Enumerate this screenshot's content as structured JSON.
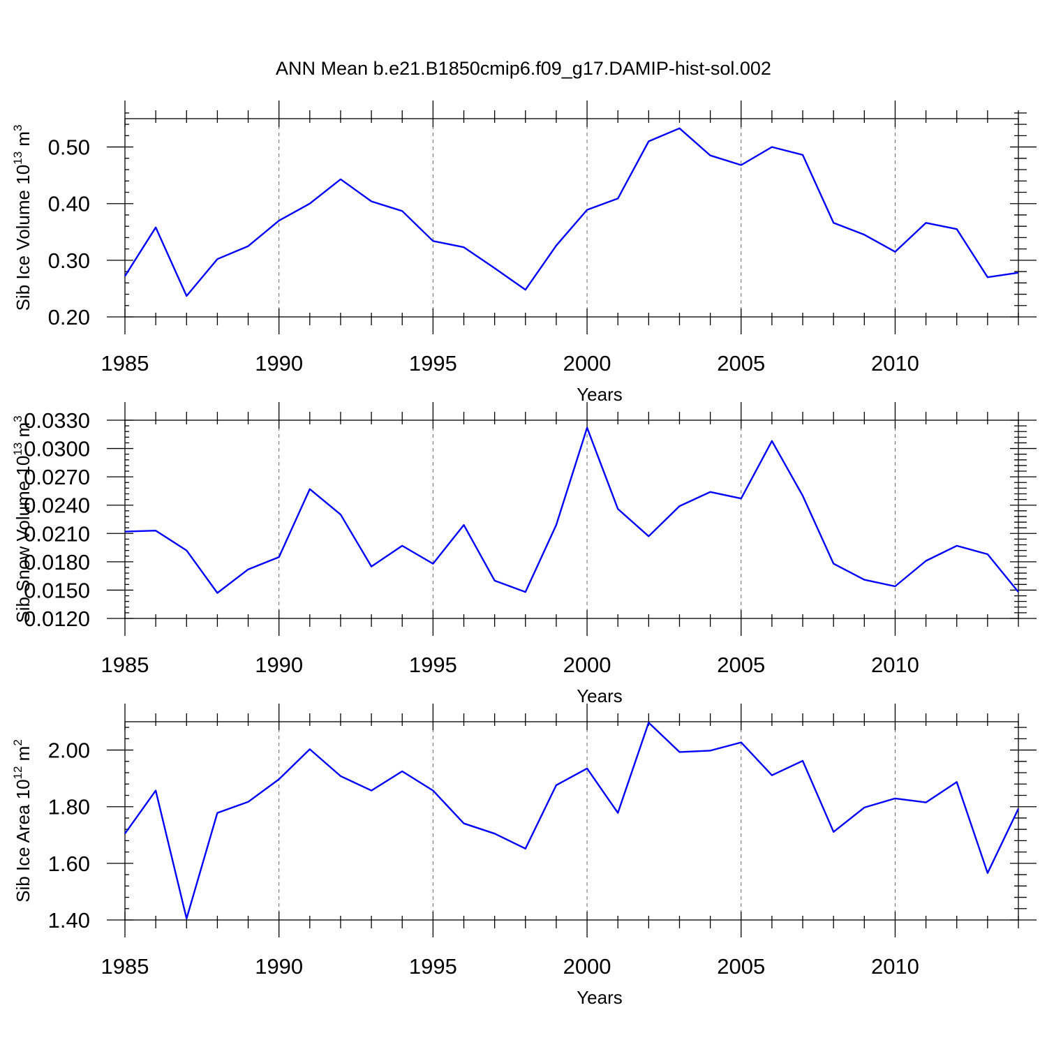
{
  "chart_data": [
    {
      "type": "line",
      "title": "ANN Mean b.e21.B1850cmip6.f09_g17.DAMIP-hist-sol.002",
      "xlabel": "Years",
      "ylabel": "Sib Ice Volume 10",
      "ylabel_exp": "13",
      "ylabel_unit": " m",
      "ylabel_unit_exp": "3",
      "xlim": [
        1985,
        2014
      ],
      "ylim": [
        0.2,
        0.55
      ],
      "xticks": [
        1985,
        1990,
        1995,
        2000,
        2005,
        2010
      ],
      "xtick_labels": [
        "1985",
        "1990",
        "1995",
        "2000",
        "2005",
        "2010"
      ],
      "yticks": [
        0.2,
        0.3,
        0.4,
        0.5
      ],
      "ytick_labels": [
        "0.20",
        "0.30",
        "0.40",
        "0.50"
      ],
      "color": "#0000ff",
      "series": [
        {
          "name": "Sib Ice Volume",
          "x": [
            1985,
            1986,
            1987,
            1988,
            1989,
            1990,
            1991,
            1992,
            1993,
            1994,
            1995,
            1996,
            1997,
            1998,
            1999,
            2000,
            2001,
            2002,
            2003,
            2004,
            2005,
            2006,
            2007,
            2008,
            2009,
            2010,
            2011,
            2012,
            2013,
            2014
          ],
          "values": [
            0.272,
            0.358,
            0.237,
            0.302,
            0.325,
            0.37,
            0.4,
            0.443,
            0.404,
            0.387,
            0.334,
            0.323,
            0.286,
            0.248,
            0.326,
            0.389,
            0.409,
            0.51,
            0.533,
            0.485,
            0.468,
            0.5,
            0.486,
            0.366,
            0.345,
            0.315,
            0.366,
            0.355,
            0.27,
            0.278
          ]
        }
      ]
    },
    {
      "type": "line",
      "title": "",
      "xlabel": "Years",
      "ylabel": "Sib Snow Volume 10",
      "ylabel_exp": "13",
      "ylabel_unit": " m",
      "ylabel_unit_exp": "3",
      "xlim": [
        1985,
        2014
      ],
      "ylim": [
        0.012,
        0.033
      ],
      "xticks": [
        1985,
        1990,
        1995,
        2000,
        2005,
        2010
      ],
      "xtick_labels": [
        "1985",
        "1990",
        "1995",
        "2000",
        "2005",
        "2010"
      ],
      "yticks": [
        0.012,
        0.015,
        0.018,
        0.021,
        0.024,
        0.027,
        0.03,
        0.033
      ],
      "ytick_labels": [
        "0.0120",
        "0.0150",
        "0.0180",
        "0.0210",
        "0.0240",
        "0.0270",
        "0.0300",
        "0.0330"
      ],
      "color": "#0000ff",
      "series": [
        {
          "name": "Sib Snow Volume",
          "x": [
            1985,
            1986,
            1987,
            1988,
            1989,
            1990,
            1991,
            1992,
            1993,
            1994,
            1995,
            1996,
            1997,
            1998,
            1999,
            2000,
            2001,
            2002,
            2003,
            2004,
            2005,
            2006,
            2007,
            2008,
            2009,
            2010,
            2011,
            2012,
            2013,
            2014
          ],
          "values": [
            0.0212,
            0.0213,
            0.0192,
            0.0147,
            0.0172,
            0.0185,
            0.0257,
            0.023,
            0.0175,
            0.0197,
            0.0178,
            0.0219,
            0.016,
            0.0148,
            0.0219,
            0.0322,
            0.0236,
            0.0207,
            0.0239,
            0.0254,
            0.0247,
            0.0308,
            0.025,
            0.0178,
            0.0161,
            0.0154,
            0.0181,
            0.0197,
            0.0188,
            0.0148
          ]
        }
      ]
    },
    {
      "type": "line",
      "title": "",
      "xlabel": "Years",
      "ylabel": "Sib Ice Area 10",
      "ylabel_exp": "12",
      "ylabel_unit": " m",
      "ylabel_unit_exp": "2",
      "xlim": [
        1985,
        2014
      ],
      "ylim": [
        1.4,
        2.1
      ],
      "xticks": [
        1985,
        1990,
        1995,
        2000,
        2005,
        2010
      ],
      "xtick_labels": [
        "1985",
        "1990",
        "1995",
        "2000",
        "2005",
        "2010"
      ],
      "yticks": [
        1.4,
        1.6,
        1.8,
        2.0
      ],
      "ytick_labels": [
        "1.40",
        "1.60",
        "1.80",
        "2.00"
      ],
      "color": "#0000ff",
      "series": [
        {
          "name": "Sib Ice Area",
          "x": [
            1985,
            1986,
            1987,
            1988,
            1989,
            1990,
            1991,
            1992,
            1993,
            1994,
            1995,
            1996,
            1997,
            1998,
            1999,
            2000,
            2001,
            2002,
            2003,
            2004,
            2005,
            2006,
            2007,
            2008,
            2009,
            2010,
            2011,
            2012,
            2013,
            2014
          ],
          "values": [
            1.705,
            1.857,
            1.405,
            1.778,
            1.817,
            1.897,
            2.003,
            1.908,
            1.857,
            1.925,
            1.857,
            1.741,
            1.705,
            1.652,
            1.876,
            1.935,
            1.778,
            2.097,
            1.993,
            1.998,
            2.027,
            1.911,
            1.962,
            1.711,
            1.797,
            1.829,
            1.815,
            1.887,
            1.566,
            1.793
          ]
        }
      ]
    }
  ]
}
